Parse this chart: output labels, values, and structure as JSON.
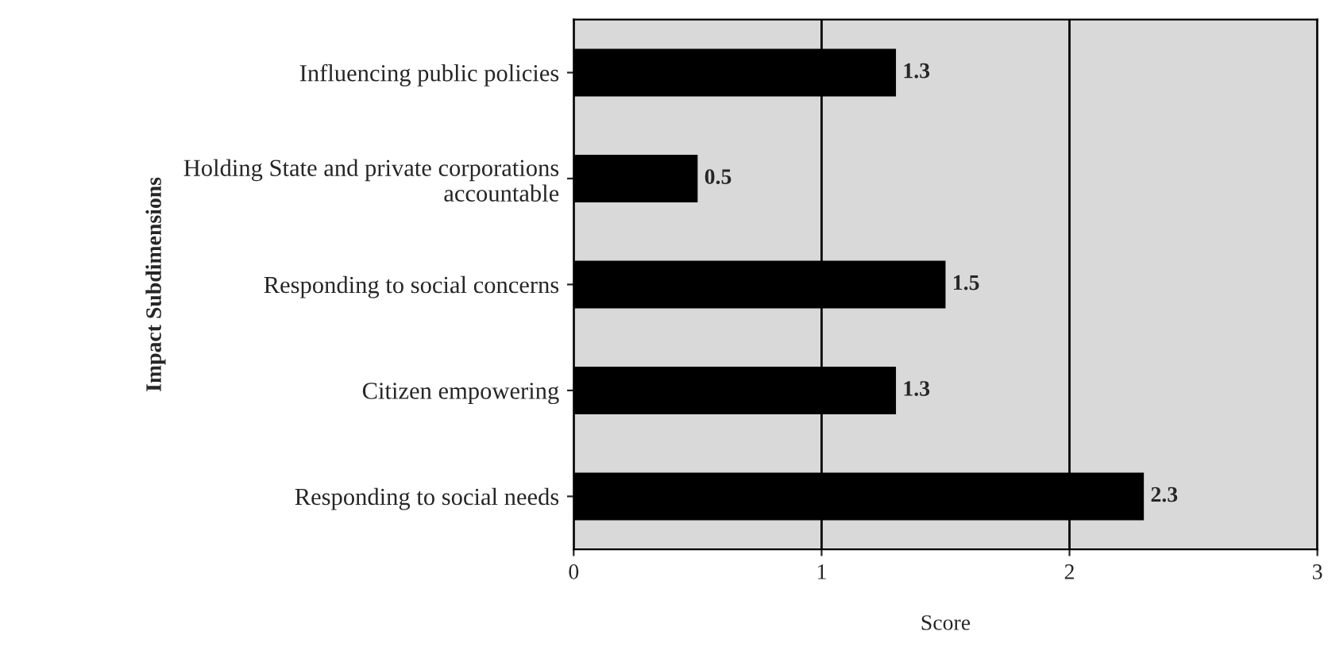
{
  "chart_data": {
    "type": "bar",
    "orientation": "horizontal",
    "categories": [
      "Influencing public policies",
      "Holding State and private corporations\naccountable",
      "Responding to social concerns",
      "Citizen empowering",
      "Responding to social needs"
    ],
    "values": [
      1.3,
      0.5,
      1.5,
      1.3,
      2.3
    ],
    "color": "#000000",
    "xlabel": "Score",
    "ylabel": "Impact Subdimensions",
    "xlim": [
      0,
      3
    ],
    "xticks": [
      0,
      1,
      2,
      3
    ],
    "grid": "x",
    "data_labels": true
  }
}
